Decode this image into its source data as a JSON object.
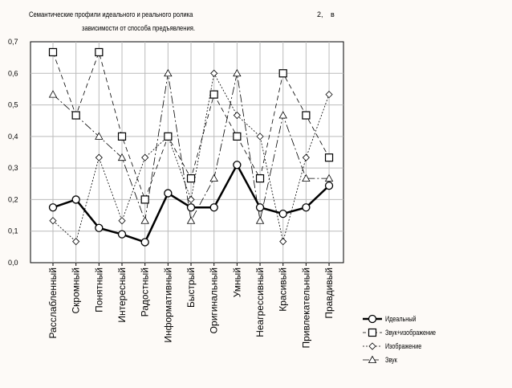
{
  "chart_data": {
    "type": "line",
    "title_line1": "Семантические профили идеального и реального ролика",
    "title_num": "2,",
    "title_word": "в",
    "title_line2": "зависимости от способа предъявления.",
    "xlabel": "",
    "ylabel": "",
    "ylim": [
      0,
      0.7
    ],
    "yticks": [
      "0,0",
      "0,1",
      "0,2",
      "0,3",
      "0,4",
      "0,5",
      "0,6",
      "0,7"
    ],
    "grid": true,
    "legend_position": "bottom-right",
    "categories": [
      "Расслабленный",
      "Скромный",
      "Понятный",
      "Интересный",
      "Радостный",
      "Информативный",
      "Быстрый",
      "Оригинальный",
      "Умный",
      "Неагрессивный",
      "Красивый",
      "Привлекательный",
      "Правдивый"
    ],
    "series": [
      {
        "name": "Идеальный",
        "marker": "circle",
        "values": [
          0.175,
          0.2,
          0.11,
          0.09,
          0.065,
          0.22,
          0.175,
          0.175,
          0.31,
          0.175,
          0.155,
          0.175,
          0.244
        ]
      },
      {
        "name": "Звук+изображение",
        "marker": "square",
        "values": [
          0.667,
          0.467,
          0.667,
          0.4,
          0.2,
          0.4,
          0.267,
          0.533,
          0.4,
          0.267,
          0.6,
          0.467,
          0.333
        ]
      },
      {
        "name": "Изображение",
        "marker": "diamond",
        "values": [
          0.133,
          0.067,
          0.333,
          0.133,
          0.333,
          0.4,
          0.2,
          0.6,
          0.467,
          0.4,
          0.067,
          0.333,
          0.533
        ]
      },
      {
        "name": "Звук",
        "marker": "triangle",
        "values": [
          0.533,
          0.467,
          0.4,
          0.333,
          0.133,
          0.6,
          0.133,
          0.267,
          0.6,
          0.133,
          0.467,
          0.267,
          0.267
        ]
      }
    ]
  }
}
